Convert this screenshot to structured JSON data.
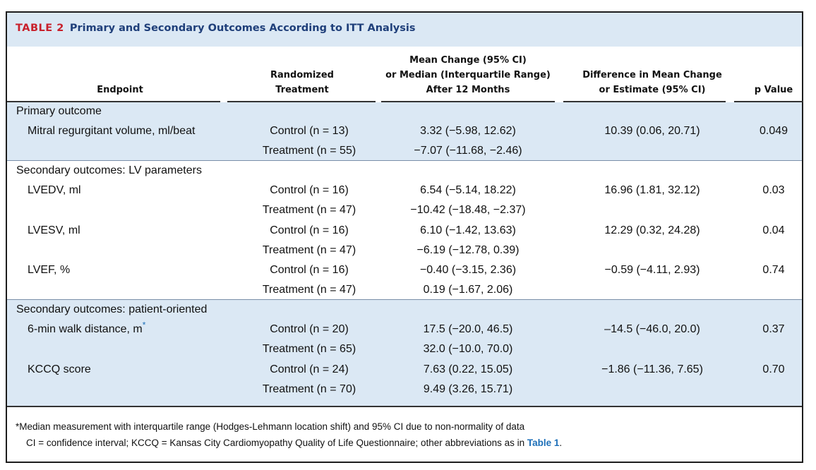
{
  "table": {
    "number": "TABLE 2",
    "title": "Primary and Secondary Outcomes According to ITT Analysis"
  },
  "headers": {
    "endpoint": "Endpoint",
    "treatment": [
      "Randomized",
      "Treatment"
    ],
    "mean_change": [
      "Mean Change (95% CI)",
      "or Median (Interquartile Range)",
      "After 12 Months"
    ],
    "difference": [
      "Difference in Mean Change",
      "or Estimate (95% CI)"
    ],
    "p_value": "p Value"
  },
  "sections": {
    "primary": "Primary outcome",
    "lv": "Secondary outcomes: LV parameters",
    "patient": "Secondary outcomes: patient-oriented"
  },
  "rows": {
    "mrv": {
      "name": "Mitral regurgitant volume, ml/beat",
      "control": "Control (n = 13)",
      "control_value": "3.32 (−5.98, 12.62)",
      "treatment": "Treatment (n = 55)",
      "treatment_value": "−7.07 (−11.68, −2.46)",
      "diff": "10.39 (0.06, 20.71)",
      "p": "0.049"
    },
    "lvedv": {
      "name": "LVEDV, ml",
      "control": "Control (n = 16)",
      "control_value": "6.54 (−5.14, 18.22)",
      "treatment": "Treatment (n = 47)",
      "treatment_value": "−10.42 (−18.48, −2.37)",
      "diff": "16.96 (1.81, 32.12)",
      "p": "0.03"
    },
    "lvesv": {
      "name": "LVESV, ml",
      "control": "Control (n = 16)",
      "control_value": "6.10 (−1.42, 13.63)",
      "treatment": "Treatment (n = 47)",
      "treatment_value": "−6.19 (−12.78, 0.39)",
      "diff": "12.29 (0.32, 24.28)",
      "p": "0.04"
    },
    "lvef": {
      "name": "LVEF, %",
      "control": "Control (n = 16)",
      "control_value": "−0.40 (−3.15, 2.36)",
      "treatment": "Treatment (n = 47)",
      "treatment_value": "0.19 (−1.67, 2.06)",
      "diff": "−0.59 (−4.11, 2.93)",
      "p": "0.74"
    },
    "walk": {
      "name": "6-min walk distance, m",
      "sup": "*",
      "control": "Control (n = 20)",
      "control_value": "17.5 (−20.0, 46.5)",
      "treatment": "Treatment (n = 65)",
      "treatment_value": "32.0 (−10.0, 70.0)",
      "diff": "–14.5 (−46.0, 20.0)",
      "p": "0.37"
    },
    "kccq": {
      "name": "KCCQ score",
      "control": "Control (n = 24)",
      "control_value": "7.63 (0.22, 15.05)",
      "treatment": "Treatment (n = 70)",
      "treatment_value": "9.49 (3.26, 15.71)",
      "diff": "−1.86 (−11.36, 7.65)",
      "p": "0.70"
    }
  },
  "footnotes": {
    "star": "*Median measurement with interquartile range (Hodges-Lehmann location shift) and 95% CI due to non-normality of data",
    "abbrev": "CI = confidence interval; KCCQ = Kansas City Cardiomyopathy Quality of Life Questionnaire; other abbreviations as in ",
    "link": "Table 1",
    "end": "."
  },
  "colors": {
    "band": "#dbe8f4",
    "title": "#1f3f7a",
    "table_number": "#c8202b",
    "link": "#1d6fb8"
  }
}
